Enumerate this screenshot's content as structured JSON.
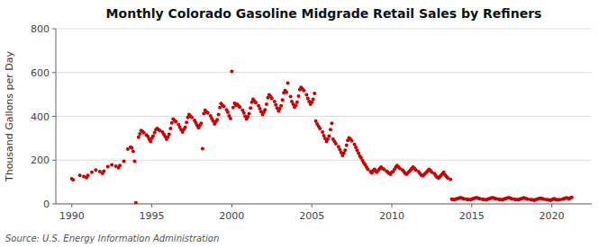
{
  "chart_data": {
    "type": "scatter",
    "title": "Monthly Colorado Gasoline Midgrade Retail Sales by Refiners",
    "ylabel": "Thousand Gallons per Day",
    "source": "Source: U.S. Energy Information Administration",
    "color": "#cc0000",
    "grid": true,
    "xlim": [
      1989.0,
      2022.5
    ],
    "ylim": [
      0,
      800
    ],
    "xticks": [
      1990,
      1995,
      2000,
      2005,
      2010,
      2015,
      2020
    ],
    "yticks": [
      0,
      200,
      400,
      600,
      800
    ],
    "x": [
      1990.0,
      1990.08,
      1990.5,
      1990.75,
      1990.92,
      1991.0,
      1991.25,
      1991.5,
      1991.75,
      1991.92,
      1992.0,
      1992.25,
      1992.5,
      1992.75,
      1992.92,
      1993.0,
      1993.25,
      1993.5,
      1993.67,
      1993.75,
      1993.83,
      1993.92,
      1994.0,
      1994.17,
      1994.25,
      1994.33,
      1994.42,
      1994.5,
      1994.67,
      1994.75,
      1994.83,
      1994.92,
      1995.0,
      1995.08,
      1995.17,
      1995.25,
      1995.33,
      1995.42,
      1995.5,
      1995.67,
      1995.75,
      1995.83,
      1995.92,
      1996.0,
      1996.08,
      1996.17,
      1996.25,
      1996.33,
      1996.42,
      1996.5,
      1996.67,
      1996.75,
      1996.83,
      1996.92,
      1997.0,
      1997.08,
      1997.17,
      1997.25,
      1997.33,
      1997.42,
      1997.5,
      1997.67,
      1997.75,
      1997.83,
      1997.92,
      1998.0,
      1998.08,
      1998.17,
      1998.25,
      1998.33,
      1998.42,
      1998.5,
      1998.67,
      1998.75,
      1998.83,
      1998.92,
      1999.0,
      1999.08,
      1999.17,
      1999.25,
      1999.33,
      1999.42,
      1999.5,
      1999.67,
      1999.75,
      1999.83,
      1999.92,
      2000.0,
      2000.08,
      2000.17,
      2000.25,
      2000.33,
      2000.42,
      2000.5,
      2000.67,
      2000.75,
      2000.83,
      2000.92,
      2001.0,
      2001.08,
      2001.17,
      2001.25,
      2001.33,
      2001.42,
      2001.5,
      2001.67,
      2001.75,
      2001.83,
      2001.92,
      2002.0,
      2002.08,
      2002.17,
      2002.25,
      2002.33,
      2002.42,
      2002.5,
      2002.67,
      2002.75,
      2002.83,
      2002.92,
      2003.0,
      2003.08,
      2003.17,
      2003.25,
      2003.33,
      2003.42,
      2003.5,
      2003.67,
      2003.75,
      2003.83,
      2003.92,
      2004.0,
      2004.08,
      2004.17,
      2004.25,
      2004.33,
      2004.42,
      2004.5,
      2004.67,
      2004.75,
      2004.83,
      2004.92,
      2005.0,
      2005.08,
      2005.17,
      2005.25,
      2005.33,
      2005.42,
      2005.5,
      2005.67,
      2005.75,
      2005.83,
      2005.92,
      2006.0,
      2006.08,
      2006.17,
      2006.25,
      2006.33,
      2006.42,
      2006.5,
      2006.67,
      2006.75,
      2006.83,
      2006.92,
      2007.0,
      2007.08,
      2007.17,
      2007.25,
      2007.33,
      2007.42,
      2007.5,
      2007.67,
      2007.75,
      2007.83,
      2007.92,
      2008.0,
      2008.08,
      2008.17,
      2008.25,
      2008.33,
      2008.42,
      2008.5,
      2008.67,
      2008.75,
      2008.83,
      2008.92,
      2009.0,
      2009.08,
      2009.17,
      2009.25,
      2009.33,
      2009.42,
      2009.5,
      2009.67,
      2009.75,
      2009.83,
      2009.92,
      2010.0,
      2010.08,
      2010.17,
      2010.25,
      2010.33,
      2010.42,
      2010.5,
      2010.67,
      2010.75,
      2010.83,
      2010.92,
      2011.0,
      2011.08,
      2011.17,
      2011.25,
      2011.33,
      2011.42,
      2011.5,
      2011.67,
      2011.75,
      2011.83,
      2011.92,
      2012.0,
      2012.08,
      2012.17,
      2012.25,
      2012.33,
      2012.42,
      2012.5,
      2012.67,
      2012.75,
      2012.83,
      2012.92,
      2013.0,
      2013.08,
      2013.17,
      2013.25,
      2013.33,
      2013.42,
      2013.5,
      2013.67,
      2013.75,
      2013.83,
      2013.92,
      2014.0,
      2014.08,
      2014.17,
      2014.25,
      2014.33,
      2014.42,
      2014.5,
      2014.67,
      2014.75,
      2014.83,
      2014.92,
      2015.0,
      2015.08,
      2015.17,
      2015.25,
      2015.33,
      2015.42,
      2015.5,
      2015.67,
      2015.75,
      2015.83,
      2015.92,
      2016.0,
      2016.08,
      2016.17,
      2016.25,
      2016.33,
      2016.42,
      2016.5,
      2016.67,
      2016.75,
      2016.83,
      2016.92,
      2017.0,
      2017.08,
      2017.17,
      2017.25,
      2017.33,
      2017.42,
      2017.5,
      2017.67,
      2017.75,
      2017.83,
      2017.92,
      2018.0,
      2018.08,
      2018.17,
      2018.25,
      2018.33,
      2018.42,
      2018.5,
      2018.67,
      2018.75,
      2018.83,
      2018.92,
      2019.0,
      2019.08,
      2019.17,
      2019.25,
      2019.33,
      2019.42,
      2019.5,
      2019.67,
      2019.75,
      2019.83,
      2019.92,
      2020.0,
      2020.08,
      2020.17,
      2020.25,
      2020.33,
      2020.42,
      2020.5,
      2020.67,
      2020.75,
      2020.83,
      2020.92,
      2021.0,
      2021.08,
      2021.17,
      2021.25
    ],
    "values": [
      115,
      110,
      130,
      125,
      120,
      130,
      145,
      155,
      148,
      140,
      150,
      170,
      178,
      172,
      165,
      175,
      195,
      250,
      260,
      255,
      240,
      195,
      5,
      305,
      320,
      335,
      330,
      325,
      315,
      308,
      295,
      285,
      300,
      310,
      325,
      338,
      345,
      340,
      335,
      328,
      318,
      308,
      295,
      305,
      318,
      345,
      370,
      388,
      382,
      375,
      362,
      350,
      338,
      328,
      340,
      350,
      372,
      395,
      408,
      400,
      395,
      382,
      370,
      358,
      348,
      358,
      368,
      252,
      412,
      428,
      420,
      415,
      402,
      390,
      378,
      365,
      375,
      385,
      408,
      440,
      458,
      450,
      445,
      430,
      418,
      402,
      390,
      605,
      440,
      460,
      450,
      455,
      448,
      442,
      428,
      415,
      400,
      388,
      398,
      412,
      438,
      465,
      478,
      470,
      462,
      448,
      435,
      422,
      408,
      418,
      430,
      455,
      485,
      498,
      490,
      482,
      468,
      452,
      438,
      425,
      435,
      448,
      475,
      508,
      518,
      510,
      552,
      490,
      468,
      455,
      442,
      450,
      465,
      492,
      522,
      532,
      525,
      518,
      498,
      482,
      468,
      455,
      465,
      478,
      505,
      378,
      365,
      355,
      345,
      328,
      312,
      298,
      285,
      295,
      310,
      340,
      368,
      295,
      285,
      275,
      262,
      248,
      235,
      222,
      232,
      245,
      268,
      290,
      302,
      295,
      288,
      272,
      258,
      245,
      232,
      218,
      210,
      198,
      188,
      178,
      168,
      158,
      148,
      142,
      152,
      158,
      148,
      145,
      155,
      162,
      168,
      162,
      158,
      150,
      145,
      140,
      135,
      145,
      148,
      158,
      168,
      175,
      168,
      162,
      155,
      148,
      140,
      135,
      142,
      148,
      155,
      162,
      168,
      162,
      155,
      148,
      140,
      132,
      128,
      132,
      138,
      145,
      152,
      158,
      152,
      145,
      138,
      128,
      122,
      118,
      125,
      130,
      138,
      145,
      132,
      125,
      118,
      112,
      22,
      20,
      18,
      22,
      24,
      26,
      28,
      28,
      26,
      24,
      22,
      20,
      20,
      18,
      22,
      24,
      26,
      28,
      28,
      26,
      24,
      22,
      20,
      20,
      18,
      22,
      24,
      26,
      28,
      28,
      26,
      24,
      22,
      20,
      20,
      18,
      22,
      24,
      26,
      28,
      28,
      26,
      24,
      22,
      20,
      20,
      18,
      22,
      24,
      26,
      28,
      26,
      24,
      22,
      20,
      18,
      18,
      16,
      20,
      22,
      24,
      26,
      26,
      24,
      22,
      20,
      18,
      18,
      16,
      20,
      22,
      24,
      20,
      18,
      18,
      20,
      22,
      24,
      26,
      28,
      26,
      24,
      28,
      30
    ]
  }
}
